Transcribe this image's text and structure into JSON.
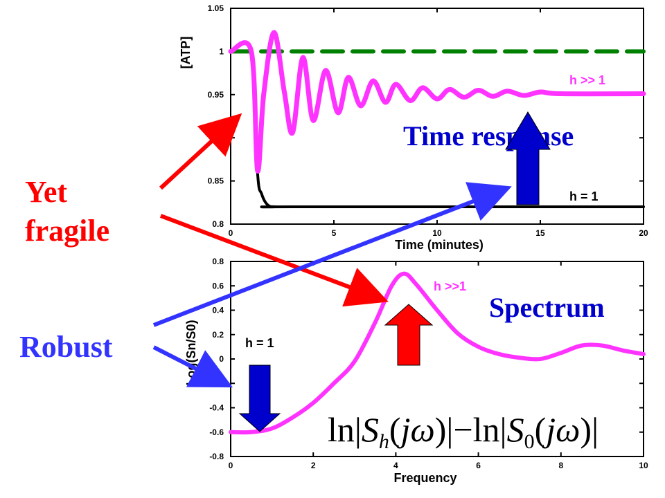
{
  "side_labels": {
    "yet": "Yet",
    "fragile": "fragile",
    "robust": "Robust"
  },
  "colors": {
    "magenta": "#ff33ff",
    "black": "#000000",
    "green_dashed": "#008000",
    "red": "#ff0000",
    "blue": "#3333ff",
    "navy": "#0000cc"
  },
  "chart_data": [
    {
      "type": "line",
      "title": "Time response",
      "xlabel": "Time (minutes)",
      "ylabel": "[ATP]",
      "xlim": [
        0,
        20
      ],
      "ylim": [
        0.8,
        1.05
      ],
      "xticks": [
        "0",
        "5",
        "10",
        "15",
        "20"
      ],
      "yticks": [
        "0.8",
        "0.85",
        "0.9",
        "0.95",
        "1",
        "1.05"
      ],
      "series": [
        {
          "name": "h >> 1",
          "x": [
            0,
            1,
            1.3,
            1.6,
            2.1,
            2.6,
            3.0,
            3.5,
            4.0,
            4.6,
            5.2,
            5.7,
            6.3,
            6.9,
            7.5,
            8.0,
            8.7,
            9.3,
            10.0,
            10.6,
            11.3,
            12.0,
            12.7,
            13.4,
            14.2,
            15.0,
            16.0,
            20
          ],
          "values": [
            1.0,
            1.0,
            0.862,
            0.95,
            1.022,
            0.953,
            0.906,
            0.993,
            0.92,
            0.978,
            0.929,
            0.97,
            0.937,
            0.966,
            0.941,
            0.962,
            0.943,
            0.958,
            0.945,
            0.956,
            0.947,
            0.955,
            0.948,
            0.954,
            0.949,
            0.953,
            0.951,
            0.951
          ]
        },
        {
          "name": "h = 1",
          "x": [
            0,
            1,
            1.3,
            1.5,
            1.8,
            2.2,
            3,
            20
          ],
          "values": [
            1.0,
            1.0,
            0.86,
            0.835,
            0.822,
            0.82,
            0.82,
            0.82
          ]
        },
        {
          "name": "",
          "style": "dashed",
          "x": [
            0,
            20
          ],
          "values": [
            1.0,
            1.0
          ]
        }
      ],
      "annotations": [
        "h >> 1",
        "h = 1"
      ]
    },
    {
      "type": "line",
      "title": "Spectrum",
      "xlabel": "Frequency",
      "ylabel": "Log(Sn/S0)",
      "xlim": [
        0,
        10
      ],
      "ylim": [
        -0.8,
        0.8
      ],
      "xticks": [
        "0",
        "2",
        "4",
        "6",
        "8",
        "10"
      ],
      "yticks": [
        "0.8",
        "0.6",
        "0.4",
        "0.2",
        "0",
        "-0.2",
        "-0.4",
        "-0.6",
        "-0.8"
      ],
      "series": [
        {
          "name": "h >>1",
          "x": [
            0,
            0.5,
            1.0,
            1.5,
            2.0,
            2.5,
            3.0,
            3.5,
            3.9,
            4.2,
            4.5,
            5.0,
            5.5,
            6.0,
            6.5,
            7.0,
            7.5,
            8.0,
            8.5,
            9.0,
            9.5,
            10
          ],
          "values": [
            -0.6,
            -0.6,
            -0.57,
            -0.48,
            -0.36,
            -0.2,
            -0.02,
            0.3,
            0.6,
            0.7,
            0.61,
            0.4,
            0.21,
            0.1,
            0.04,
            0.01,
            0.0,
            0.05,
            0.11,
            0.11,
            0.07,
            0.04
          ]
        }
      ],
      "annotations": [
        "h >>1",
        "h = 1"
      ],
      "formula": "ln|Sh(jω)| − ln|S0(jω)|"
    }
  ]
}
